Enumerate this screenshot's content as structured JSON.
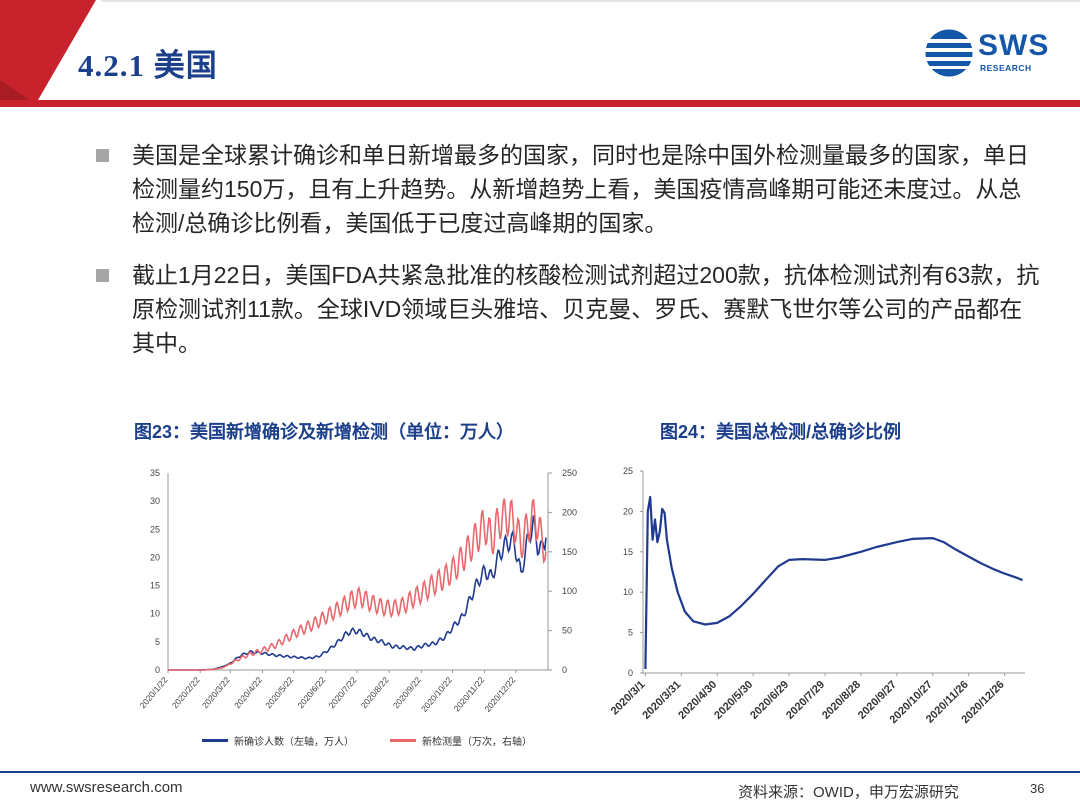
{
  "header": {
    "title": "4.2.1 美国"
  },
  "logo": {
    "text": "SWS",
    "sub": "RESEARCH"
  },
  "bullets": [
    "美国是全球累计确诊和单日新增最多的国家，同时也是除中国外检测量最多的国家，单日检测量约150万，且有上升趋势。从新增趋势上看，美国疫情高峰期可能还未度过。从总检测/总确诊比例看，美国低于已度过高峰期的国家。",
    "截止1月22日，美国FDA共紧急批准的核酸检测试剂超过200款，抗体检测试剂有63款，抗原检测试剂11款。全球IVD领域巨头雅培、贝克曼、罗氏、赛默飞世尔等公司的产品都在其中。"
  ],
  "captions": {
    "fig23": "图23：美国新增确诊及新增检测（单位：万人）",
    "fig24": "图24：美国总检测/总确诊比例"
  },
  "chart_data": [
    {
      "type": "line",
      "x_ticks": [
        "2020/1/22",
        "2020/2/22",
        "2020/3/22",
        "2020/4/22",
        "2020/5/22",
        "2020/6/22",
        "2020/7/22",
        "2020/8/22",
        "2020/9/22",
        "2020/10/22",
        "2020/11/22",
        "2020/12/22"
      ],
      "y_ticks_left": [
        0,
        5,
        10,
        15,
        20,
        25,
        30,
        35
      ],
      "y_ticks_right": [
        0,
        50,
        100,
        150,
        200,
        250
      ],
      "ylim_left": [
        0,
        35
      ],
      "ylim_right": [
        0,
        250
      ],
      "series": [
        {
          "name": "新确诊人数（左轴，万人）",
          "axis": "left",
          "color": "#1f3a8f",
          "points": [
            [
              "2020/1/22",
              0
            ],
            [
              "2020/2/22",
              0
            ],
            [
              "2020/3/5",
              0.1
            ],
            [
              "2020/3/15",
              0.6
            ],
            [
              "2020/3/22",
              1.2
            ],
            [
              "2020/4/1",
              2.6
            ],
            [
              "2020/4/10",
              3.2
            ],
            [
              "2020/4/22",
              3.0
            ],
            [
              "2020/5/5",
              2.6
            ],
            [
              "2020/5/22",
              2.3
            ],
            [
              "2020/6/5",
              2.1
            ],
            [
              "2020/6/15",
              2.4
            ],
            [
              "2020/6/25",
              3.6
            ],
            [
              "2020/7/5",
              5.2
            ],
            [
              "2020/7/12",
              6.5
            ],
            [
              "2020/7/19",
              7.0
            ],
            [
              "2020/7/26",
              6.7
            ],
            [
              "2020/8/5",
              5.6
            ],
            [
              "2020/8/15",
              5.0
            ],
            [
              "2020/8/25",
              4.2
            ],
            [
              "2020/9/5",
              4.0
            ],
            [
              "2020/9/15",
              3.8
            ],
            [
              "2020/9/25",
              4.4
            ],
            [
              "2020/10/5",
              4.7
            ],
            [
              "2020/10/15",
              5.9
            ],
            [
              "2020/10/25",
              8.2
            ],
            [
              "2020/11/1",
              9.5
            ],
            [
              "2020/11/8",
              12.6
            ],
            [
              "2020/11/15",
              15.5
            ],
            [
              "2020/11/22",
              17.6
            ],
            [
              "2020/11/29",
              16.5
            ],
            [
              "2020/12/6",
              20.5
            ],
            [
              "2020/12/13",
              22.5
            ],
            [
              "2020/12/20",
              23.0
            ],
            [
              "2020/12/27",
              17.0
            ],
            [
              "2021/1/3",
              23.5
            ],
            [
              "2021/1/8",
              26.0
            ],
            [
              "2021/1/12",
              22.0
            ],
            [
              "2021/1/16",
              21.5
            ],
            [
              "2021/1/20",
              23.5
            ]
          ]
        },
        {
          "name": "新检测量（万次，右轴）",
          "axis": "right",
          "color": "#e8696d",
          "points": [
            [
              "2020/1/22",
              0
            ],
            [
              "2020/2/22",
              0
            ],
            [
              "2020/3/5",
              0.5
            ],
            [
              "2020/3/15",
              3
            ],
            [
              "2020/3/22",
              8
            ],
            [
              "2020/4/1",
              15
            ],
            [
              "2020/4/10",
              20
            ],
            [
              "2020/4/22",
              25
            ],
            [
              "2020/5/5",
              32
            ],
            [
              "2020/5/15",
              40
            ],
            [
              "2020/5/25",
              48
            ],
            [
              "2020/6/5",
              55
            ],
            [
              "2020/6/15",
              62
            ],
            [
              "2020/6/25",
              70
            ],
            [
              "2020/7/5",
              78
            ],
            [
              "2020/7/15",
              88
            ],
            [
              "2020/7/25",
              93
            ],
            [
              "2020/8/5",
              85
            ],
            [
              "2020/8/15",
              80
            ],
            [
              "2020/8/25",
              78
            ],
            [
              "2020/9/5",
              82
            ],
            [
              "2020/9/15",
              92
            ],
            [
              "2020/9/25",
              100
            ],
            [
              "2020/10/5",
              110
            ],
            [
              "2020/10/15",
              118
            ],
            [
              "2020/10/25",
              130
            ],
            [
              "2020/11/5",
              150
            ],
            [
              "2020/11/15",
              170
            ],
            [
              "2020/11/22",
              185
            ],
            [
              "2020/11/29",
              165
            ],
            [
              "2020/12/6",
              190
            ],
            [
              "2020/12/13",
              195
            ],
            [
              "2020/12/20",
              190
            ],
            [
              "2020/12/27",
              160
            ],
            [
              "2021/1/5",
              190
            ],
            [
              "2021/1/10",
              195
            ],
            [
              "2021/1/15",
              170
            ],
            [
              "2021/1/20",
              150
            ]
          ]
        }
      ]
    },
    {
      "type": "line",
      "x_ticks": [
        "2020/3/1",
        "2020/3/31",
        "2020/4/30",
        "2020/5/30",
        "2020/6/29",
        "2020/7/29",
        "2020/8/28",
        "2020/9/27",
        "2020/10/27",
        "2020/11/26",
        "2020/12/26"
      ],
      "y_ticks": [
        0,
        5,
        10,
        15,
        20,
        25
      ],
      "ylim": [
        0,
        25
      ],
      "series": [
        {
          "color": "#1f3a8f",
          "points": [
            [
              "2020/3/1",
              0.5
            ],
            [
              "2020/3/3",
              20.0
            ],
            [
              "2020/3/5",
              21.8
            ],
            [
              "2020/3/7",
              16.5
            ],
            [
              "2020/3/9",
              19.0
            ],
            [
              "2020/3/11",
              16.2
            ],
            [
              "2020/3/13",
              17.5
            ],
            [
              "2020/3/15",
              20.3
            ],
            [
              "2020/3/17",
              19.8
            ],
            [
              "2020/3/19",
              16.5
            ],
            [
              "2020/3/23",
              13.0
            ],
            [
              "2020/3/28",
              10.0
            ],
            [
              "2020/4/3",
              7.6
            ],
            [
              "2020/4/10",
              6.4
            ],
            [
              "2020/4/20",
              6.0
            ],
            [
              "2020/4/30",
              6.2
            ],
            [
              "2020/5/10",
              7.0
            ],
            [
              "2020/5/20",
              8.3
            ],
            [
              "2020/5/30",
              9.8
            ],
            [
              "2020/6/10",
              11.6
            ],
            [
              "2020/6/20",
              13.2
            ],
            [
              "2020/6/29",
              14.0
            ],
            [
              "2020/7/10",
              14.1
            ],
            [
              "2020/7/29",
              14.0
            ],
            [
              "2020/8/10",
              14.3
            ],
            [
              "2020/8/28",
              15.0
            ],
            [
              "2020/9/10",
              15.6
            ],
            [
              "2020/9/27",
              16.2
            ],
            [
              "2020/10/10",
              16.6
            ],
            [
              "2020/10/27",
              16.7
            ],
            [
              "2020/11/5",
              16.2
            ],
            [
              "2020/11/15",
              15.3
            ],
            [
              "2020/11/26",
              14.4
            ],
            [
              "2020/12/6",
              13.6
            ],
            [
              "2020/12/16",
              12.9
            ],
            [
              "2020/12/26",
              12.3
            ],
            [
              "2021/1/5",
              11.8
            ],
            [
              "2021/1/10",
              11.5
            ]
          ]
        }
      ]
    }
  ],
  "footer": {
    "url": "www.swsresearch.com",
    "source": "资料来源：OWID，申万宏源研究",
    "page": "36"
  }
}
